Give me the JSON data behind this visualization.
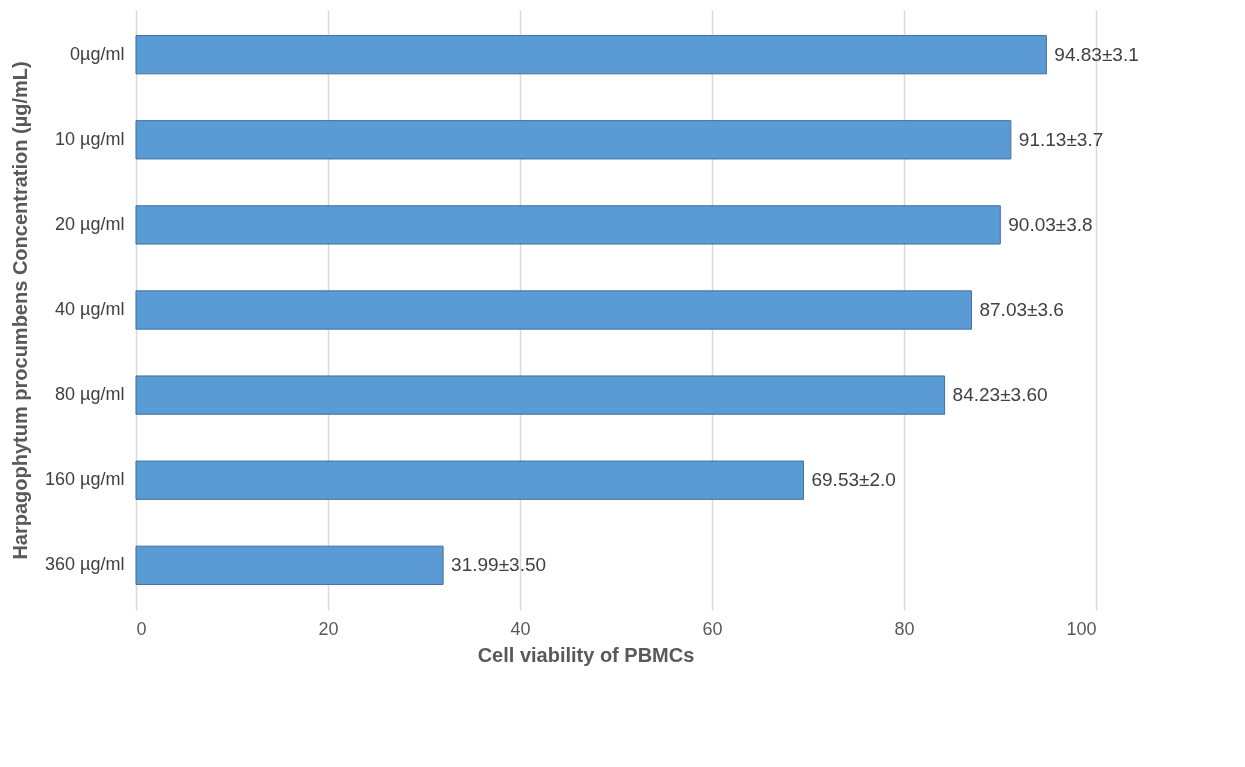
{
  "chart_data": {
    "type": "bar",
    "orientation": "horizontal",
    "xlabel": "Cell viability of PBMCs",
    "ylabel": "Harpagophytum procumbens Concentration\n(µg/mL)",
    "categories": [
      "0µg/ml",
      "10 µg/ml",
      "20 µg/ml",
      "40 µg/ml",
      "80 µg/ml",
      "160 µg/ml",
      "360 µg/ml"
    ],
    "values": [
      94.83,
      91.13,
      90.03,
      87.03,
      84.23,
      69.53,
      31.99
    ],
    "value_labels": [
      "94.83±3.1",
      "91.13±3.7",
      "90.03±3.8",
      "87.03±3.6",
      "84.23±3.60",
      "69.53±2.0",
      "31.99±3.50"
    ],
    "color": "#5b9bd5",
    "xlim": [
      0,
      100
    ],
    "xticks": [
      0,
      20,
      40,
      60,
      80,
      100
    ],
    "grid": "x"
  }
}
